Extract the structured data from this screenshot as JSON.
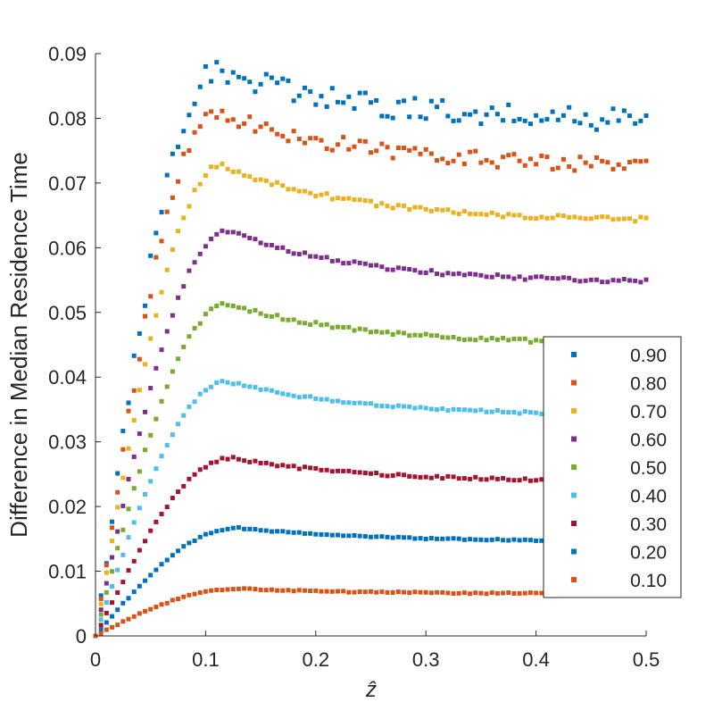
{
  "chart_data": {
    "type": "scatter",
    "title": "",
    "xlabel": "ẑ",
    "ylabel": "Difference in Median Residence Time",
    "xlim": [
      0,
      0.5
    ],
    "ylim": [
      0,
      0.09
    ],
    "x_ticks": [
      "0",
      "0.1",
      "0.2",
      "0.3",
      "0.4",
      "0.5"
    ],
    "y_ticks": [
      "0",
      "0.01",
      "0.02",
      "0.03",
      "0.04",
      "0.05",
      "0.06",
      "0.07",
      "0.08",
      "0.09"
    ],
    "grid": false,
    "legend_position": "lower-right",
    "x_step": 0.005,
    "series": [
      {
        "name": "0.90",
        "color": "#0072BD",
        "peak_x": 0.11,
        "peak": 0.0875,
        "plateau": 0.0795,
        "noise": 0.0018,
        "seed": 9
      },
      {
        "name": "0.80",
        "color": "#D95319",
        "peak_x": 0.11,
        "peak": 0.0812,
        "plateau": 0.0725,
        "noise": 0.0012,
        "seed": 8
      },
      {
        "name": "0.70",
        "color": "#EDB120",
        "peak_x": 0.115,
        "peak": 0.0728,
        "plateau": 0.064,
        "noise": 0.0004,
        "seed": 7
      },
      {
        "name": "0.60",
        "color": "#7E2F8E",
        "peak_x": 0.12,
        "peak": 0.0626,
        "plateau": 0.0545,
        "noise": 0.0003,
        "seed": 6
      },
      {
        "name": "0.50",
        "color": "#77AC30",
        "peak_x": 0.12,
        "peak": 0.0513,
        "plateau": 0.045,
        "noise": 0.0003,
        "seed": 5
      },
      {
        "name": "0.40",
        "color": "#4DBEEE",
        "peak_x": 0.12,
        "peak": 0.0393,
        "plateau": 0.034,
        "noise": 0.0002,
        "seed": 4
      },
      {
        "name": "0.30",
        "color": "#A2142F",
        "peak_x": 0.125,
        "peak": 0.0275,
        "plateau": 0.0238,
        "noise": 0.0002,
        "seed": 3
      },
      {
        "name": "0.20",
        "color": "#0072BD",
        "peak_x": 0.13,
        "peak": 0.0167,
        "plateau": 0.0146,
        "noise": 0.0001,
        "seed": 2
      },
      {
        "name": "0.10",
        "color": "#D95319",
        "peak_x": 0.13,
        "peak": 0.0073,
        "plateau": 0.0065,
        "noise": 0.0001,
        "seed": 1
      }
    ]
  }
}
